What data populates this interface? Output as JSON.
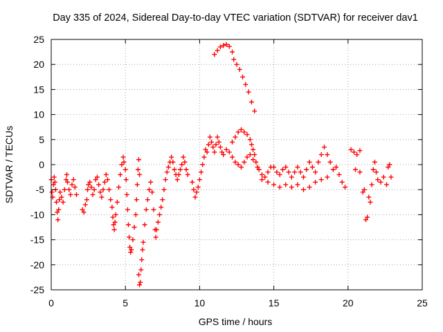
{
  "chart_data": {
    "type": "scatter",
    "title": "Day 335 of 2024, Sidereal Day-to-day VTEC variation (SDTVAR) for receiver dav1",
    "xlabel": "GPS time / hours",
    "ylabel": "SDTVAR / TECUs",
    "xlim": [
      0,
      25
    ],
    "ylim": [
      -25,
      25
    ],
    "xticks": [
      0,
      5,
      10,
      15,
      20,
      25
    ],
    "yticks": [
      25,
      20,
      15,
      10,
      5,
      0,
      -5,
      -10,
      -15,
      -20,
      -25
    ],
    "xtick_labels": [
      "0",
      "5",
      "10",
      "15",
      "20",
      "25"
    ],
    "ytick_labels": [
      "25",
      "20",
      "15",
      "10",
      "5",
      "0",
      "-5",
      "-10",
      "-15",
      "-20",
      "-25"
    ],
    "grid": true,
    "marker": "+",
    "color": "#ff0000",
    "series": [
      {
        "name": "SDTVAR",
        "points": [
          [
            0.0,
            -3.0
          ],
          [
            0.05,
            -5.5
          ],
          [
            0.1,
            -6.5
          ],
          [
            0.15,
            -4.0
          ],
          [
            0.2,
            -2.5
          ],
          [
            0.25,
            -3.5
          ],
          [
            0.3,
            -5.0
          ],
          [
            0.35,
            -7.5
          ],
          [
            0.4,
            -9.5
          ],
          [
            0.45,
            -11.0
          ],
          [
            0.5,
            -9.0
          ],
          [
            0.55,
            -7.0
          ],
          [
            0.6,
            -5.5
          ],
          [
            0.7,
            -6.5
          ],
          [
            0.8,
            -7.5
          ],
          [
            0.9,
            -5.0
          ],
          [
            1.0,
            -3.0
          ],
          [
            1.05,
            -2.0
          ],
          [
            1.1,
            -3.5
          ],
          [
            1.2,
            -5.0
          ],
          [
            1.3,
            -6.0
          ],
          [
            1.4,
            -4.0
          ],
          [
            1.5,
            -3.0
          ],
          [
            1.6,
            -4.5
          ],
          [
            1.7,
            -6.0
          ],
          [
            2.1,
            -9.0
          ],
          [
            2.2,
            -9.5
          ],
          [
            2.3,
            -8.0
          ],
          [
            2.4,
            -7.0
          ],
          [
            2.45,
            -5.0
          ],
          [
            2.5,
            -4.0
          ],
          [
            2.6,
            -3.5
          ],
          [
            2.7,
            -4.5
          ],
          [
            2.8,
            -6.0
          ],
          [
            2.9,
            -5.0
          ],
          [
            3.0,
            -3.0
          ],
          [
            3.1,
            -2.5
          ],
          [
            3.2,
            -4.0
          ],
          [
            3.3,
            -5.5
          ],
          [
            3.4,
            -6.5
          ],
          [
            3.5,
            -5.0
          ],
          [
            3.6,
            -3.5
          ],
          [
            3.7,
            -2.0
          ],
          [
            3.8,
            -3.0
          ],
          [
            3.9,
            -5.0
          ],
          [
            4.0,
            -7.0
          ],
          [
            4.1,
            -8.5
          ],
          [
            4.15,
            -10.5
          ],
          [
            4.2,
            -12.0
          ],
          [
            4.25,
            -13.0
          ],
          [
            4.3,
            -11.5
          ],
          [
            4.35,
            -10.0
          ],
          [
            4.45,
            -7.5
          ],
          [
            4.55,
            -4.5
          ],
          [
            4.65,
            -2.0
          ],
          [
            4.75,
            0.0
          ],
          [
            4.85,
            1.5
          ],
          [
            4.9,
            0.5
          ],
          [
            5.0,
            -1.0
          ],
          [
            5.05,
            -3.0
          ],
          [
            5.1,
            -6.0
          ],
          [
            5.15,
            -9.0
          ],
          [
            5.2,
            -12.0
          ],
          [
            5.25,
            -14.5
          ],
          [
            5.3,
            -16.5
          ],
          [
            5.35,
            -17.5
          ],
          [
            5.4,
            -17.0
          ],
          [
            5.5,
            -15.0
          ],
          [
            5.6,
            -12.5
          ],
          [
            5.7,
            -10.0
          ],
          [
            5.75,
            -7.0
          ],
          [
            5.8,
            -4.0
          ],
          [
            5.85,
            -1.0
          ],
          [
            5.9,
            1.0
          ],
          [
            5.95,
            -2.0
          ],
          [
            5.9,
            -22.0
          ],
          [
            5.95,
            -24.0
          ],
          [
            6.0,
            -23.5
          ],
          [
            6.05,
            -21.0
          ],
          [
            6.1,
            -19.0
          ],
          [
            6.15,
            -17.0
          ],
          [
            6.2,
            -15.5
          ],
          [
            6.3,
            -12.0
          ],
          [
            6.4,
            -9.0
          ],
          [
            6.5,
            -7.0
          ],
          [
            6.6,
            -5.0
          ],
          [
            6.7,
            -3.5
          ],
          [
            6.8,
            -5.5
          ],
          [
            6.9,
            -9.0
          ],
          [
            7.0,
            -13.0
          ],
          [
            7.05,
            -14.5
          ],
          [
            7.1,
            -13.0
          ],
          [
            7.2,
            -11.5
          ],
          [
            7.3,
            -10.0
          ],
          [
            7.4,
            -8.5
          ],
          [
            7.5,
            -7.0
          ],
          [
            7.6,
            -5.0
          ],
          [
            7.7,
            -3.0
          ],
          [
            7.8,
            -1.5
          ],
          [
            7.9,
            -0.5
          ],
          [
            8.0,
            0.5
          ],
          [
            8.1,
            1.5
          ],
          [
            8.2,
            0.5
          ],
          [
            8.3,
            -1.0
          ],
          [
            8.4,
            -2.0
          ],
          [
            8.5,
            -3.0
          ],
          [
            8.6,
            -2.0
          ],
          [
            8.7,
            -1.0
          ],
          [
            8.8,
            0.0
          ],
          [
            8.9,
            1.5
          ],
          [
            9.0,
            0.5
          ],
          [
            9.1,
            -1.0
          ],
          [
            9.2,
            -2.0
          ],
          [
            9.5,
            -3.5
          ],
          [
            9.6,
            -5.0
          ],
          [
            9.7,
            -6.5
          ],
          [
            9.8,
            -5.5
          ],
          [
            9.9,
            -4.5
          ],
          [
            10.0,
            -3.0
          ],
          [
            10.1,
            -1.5
          ],
          [
            10.2,
            0.0
          ],
          [
            10.3,
            1.5
          ],
          [
            10.4,
            3.0
          ],
          [
            10.5,
            2.5
          ],
          [
            10.6,
            4.0
          ],
          [
            10.7,
            5.5
          ],
          [
            10.8,
            4.5
          ],
          [
            10.9,
            3.5
          ],
          [
            11.0,
            2.5
          ],
          [
            11.1,
            4.0
          ],
          [
            11.2,
            5.5
          ],
          [
            11.3,
            4.5
          ],
          [
            11.4,
            3.5
          ],
          [
            11.5,
            2.5
          ],
          [
            11.6,
            2.0
          ],
          [
            11.8,
            3.0
          ],
          [
            12.0,
            2.5
          ],
          [
            12.2,
            4.5
          ],
          [
            12.4,
            5.5
          ],
          [
            12.6,
            6.5
          ],
          [
            12.8,
            7.0
          ],
          [
            13.0,
            6.5
          ],
          [
            13.2,
            6.0
          ],
          [
            13.4,
            5.0
          ],
          [
            13.5,
            4.0
          ],
          [
            13.6,
            3.0
          ],
          [
            13.7,
            2.0
          ],
          [
            13.8,
            0.5
          ],
          [
            13.9,
            -0.5
          ],
          [
            14.0,
            -1.0
          ],
          [
            12.2,
            1.5
          ],
          [
            12.4,
            0.5
          ],
          [
            12.6,
            0.0
          ],
          [
            12.8,
            -0.5
          ],
          [
            13.0,
            0.5
          ],
          [
            13.2,
            1.5
          ],
          [
            13.4,
            2.0
          ],
          [
            13.6,
            1.0
          ],
          [
            11.0,
            22.0
          ],
          [
            11.2,
            22.8
          ],
          [
            11.4,
            23.5
          ],
          [
            11.6,
            23.8
          ],
          [
            11.8,
            24.0
          ],
          [
            12.0,
            23.6
          ],
          [
            12.2,
            22.5
          ],
          [
            12.3,
            21.0
          ],
          [
            12.5,
            20.0
          ],
          [
            12.7,
            19.0
          ],
          [
            12.9,
            17.5
          ],
          [
            13.1,
            16.0
          ],
          [
            13.3,
            14.5
          ],
          [
            13.5,
            12.5
          ],
          [
            13.7,
            10.7
          ],
          [
            14.2,
            -2.0
          ],
          [
            14.4,
            -2.5
          ],
          [
            14.6,
            -1.5
          ],
          [
            14.8,
            -0.5
          ],
          [
            15.0,
            -0.5
          ],
          [
            15.2,
            -1.5
          ],
          [
            15.4,
            -2.0
          ],
          [
            15.6,
            -1.0
          ],
          [
            15.8,
            -0.5
          ],
          [
            16.0,
            -1.5
          ],
          [
            16.2,
            -2.5
          ],
          [
            16.4,
            -1.5
          ],
          [
            16.6,
            -0.5
          ],
          [
            16.8,
            -1.5
          ],
          [
            17.0,
            -2.5
          ],
          [
            17.2,
            -1.0
          ],
          [
            17.4,
            0.5
          ],
          [
            17.6,
            -0.5
          ],
          [
            17.8,
            -1.5
          ],
          [
            18.0,
            0.5
          ],
          [
            18.2,
            2.0
          ],
          [
            18.4,
            3.5
          ],
          [
            18.6,
            2.0
          ],
          [
            18.8,
            0.5
          ],
          [
            19.0,
            -1.0
          ],
          [
            19.2,
            -0.5
          ],
          [
            19.4,
            -2.0
          ],
          [
            19.6,
            -3.5
          ],
          [
            19.8,
            -4.5
          ],
          [
            14.2,
            -3.0
          ],
          [
            14.6,
            -3.5
          ],
          [
            15.0,
            -4.0
          ],
          [
            15.4,
            -4.5
          ],
          [
            15.8,
            -4.0
          ],
          [
            16.2,
            -4.5
          ],
          [
            16.6,
            -4.0
          ],
          [
            17.0,
            -5.0
          ],
          [
            17.4,
            -4.5
          ],
          [
            17.8,
            -3.5
          ],
          [
            18.2,
            -3.0
          ],
          [
            18.6,
            -2.5
          ],
          [
            20.2,
            3.0
          ],
          [
            20.4,
            2.5
          ],
          [
            20.6,
            2.0
          ],
          [
            20.8,
            2.8
          ],
          [
            20.5,
            -1.0
          ],
          [
            20.8,
            -1.5
          ],
          [
            21.0,
            -5.5
          ],
          [
            21.1,
            -5.0
          ],
          [
            21.2,
            -11.0
          ],
          [
            21.3,
            -10.5
          ],
          [
            21.4,
            -6.5
          ],
          [
            21.5,
            -7.5
          ],
          [
            21.6,
            -4.0
          ],
          [
            21.7,
            -1.0
          ],
          [
            21.8,
            0.5
          ],
          [
            21.9,
            -1.5
          ],
          [
            22.0,
            -3.0
          ],
          [
            22.2,
            -3.5
          ],
          [
            22.4,
            -2.5
          ],
          [
            22.6,
            -4.0
          ],
          [
            22.7,
            -0.5
          ],
          [
            22.8,
            0.0
          ],
          [
            22.9,
            -2.5
          ]
        ]
      }
    ]
  }
}
